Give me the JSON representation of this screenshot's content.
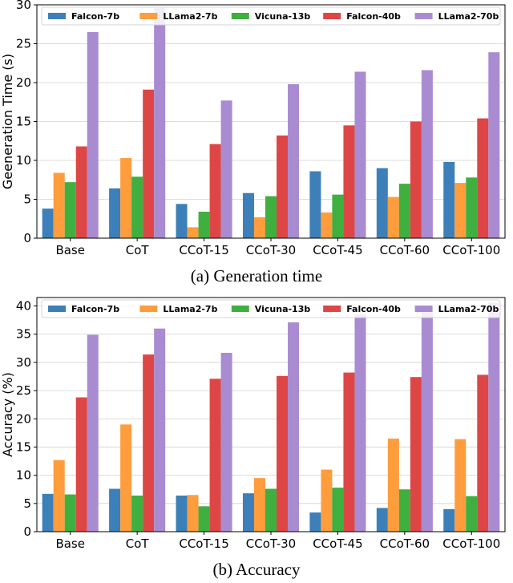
{
  "chart_data": [
    {
      "type": "bar",
      "caption": "(a) Generation time",
      "ylabel": "Geeneration Time (s)",
      "ylim": [
        0,
        30
      ],
      "yticks": [
        0,
        5,
        10,
        15,
        20,
        25,
        30
      ],
      "grid": true,
      "legend_position": "top",
      "categories": [
        "Base",
        "CoT",
        "CCoT-15",
        "CCoT-30",
        "CCoT-45",
        "CCoT-60",
        "CCoT-100"
      ],
      "series": [
        {
          "name": "Falcon-7b",
          "color": "#3d7fb8",
          "values": [
            3.8,
            6.4,
            4.4,
            5.8,
            8.6,
            9.0,
            9.8
          ]
        },
        {
          "name": "LLama2-7b",
          "color": "#ff9c3c",
          "values": [
            8.4,
            10.3,
            1.4,
            2.7,
            3.3,
            5.3,
            7.1
          ]
        },
        {
          "name": "Vicuna-13b",
          "color": "#3faf3f",
          "values": [
            7.2,
            7.9,
            3.4,
            5.4,
            5.6,
            7.0,
            7.8
          ]
        },
        {
          "name": "Falcon-40b",
          "color": "#de4646",
          "values": [
            11.8,
            19.1,
            12.1,
            13.2,
            14.5,
            15.0,
            15.4
          ]
        },
        {
          "name": "LLama2-70b",
          "color": "#a98bd1",
          "values": [
            26.5,
            29.6,
            17.7,
            19.8,
            21.4,
            21.6,
            23.9
          ]
        }
      ]
    },
    {
      "type": "bar",
      "caption": "(b) Accuracy",
      "ylabel": "Accuracy (%)",
      "ylim": [
        0,
        41.5
      ],
      "yticks": [
        0,
        5,
        10,
        15,
        20,
        25,
        30,
        35,
        40
      ],
      "grid": true,
      "legend_position": "top",
      "categories": [
        "Base",
        "CoT",
        "CCoT-15",
        "CCoT-30",
        "CCoT-45",
        "CCoT-60",
        "CCoT-100"
      ],
      "series": [
        {
          "name": "Falcon-7b",
          "color": "#3d7fb8",
          "values": [
            6.7,
            7.6,
            6.4,
            6.8,
            3.4,
            4.2,
            4.0
          ]
        },
        {
          "name": "LLama2-7b",
          "color": "#ff9c3c",
          "values": [
            12.7,
            19.0,
            6.5,
            9.5,
            11.0,
            16.5,
            16.4
          ]
        },
        {
          "name": "Vicuna-13b",
          "color": "#3faf3f",
          "values": [
            6.6,
            6.4,
            4.5,
            7.6,
            7.8,
            7.5,
            6.3
          ]
        },
        {
          "name": "Falcon-40b",
          "color": "#de4646",
          "values": [
            23.8,
            31.4,
            27.1,
            27.6,
            28.2,
            27.4,
            27.8
          ]
        },
        {
          "name": "LLama2-70b",
          "color": "#a98bd1",
          "values": [
            34.9,
            36.0,
            31.7,
            37.1,
            38.5,
            39.8,
            40.6
          ]
        }
      ]
    }
  ]
}
